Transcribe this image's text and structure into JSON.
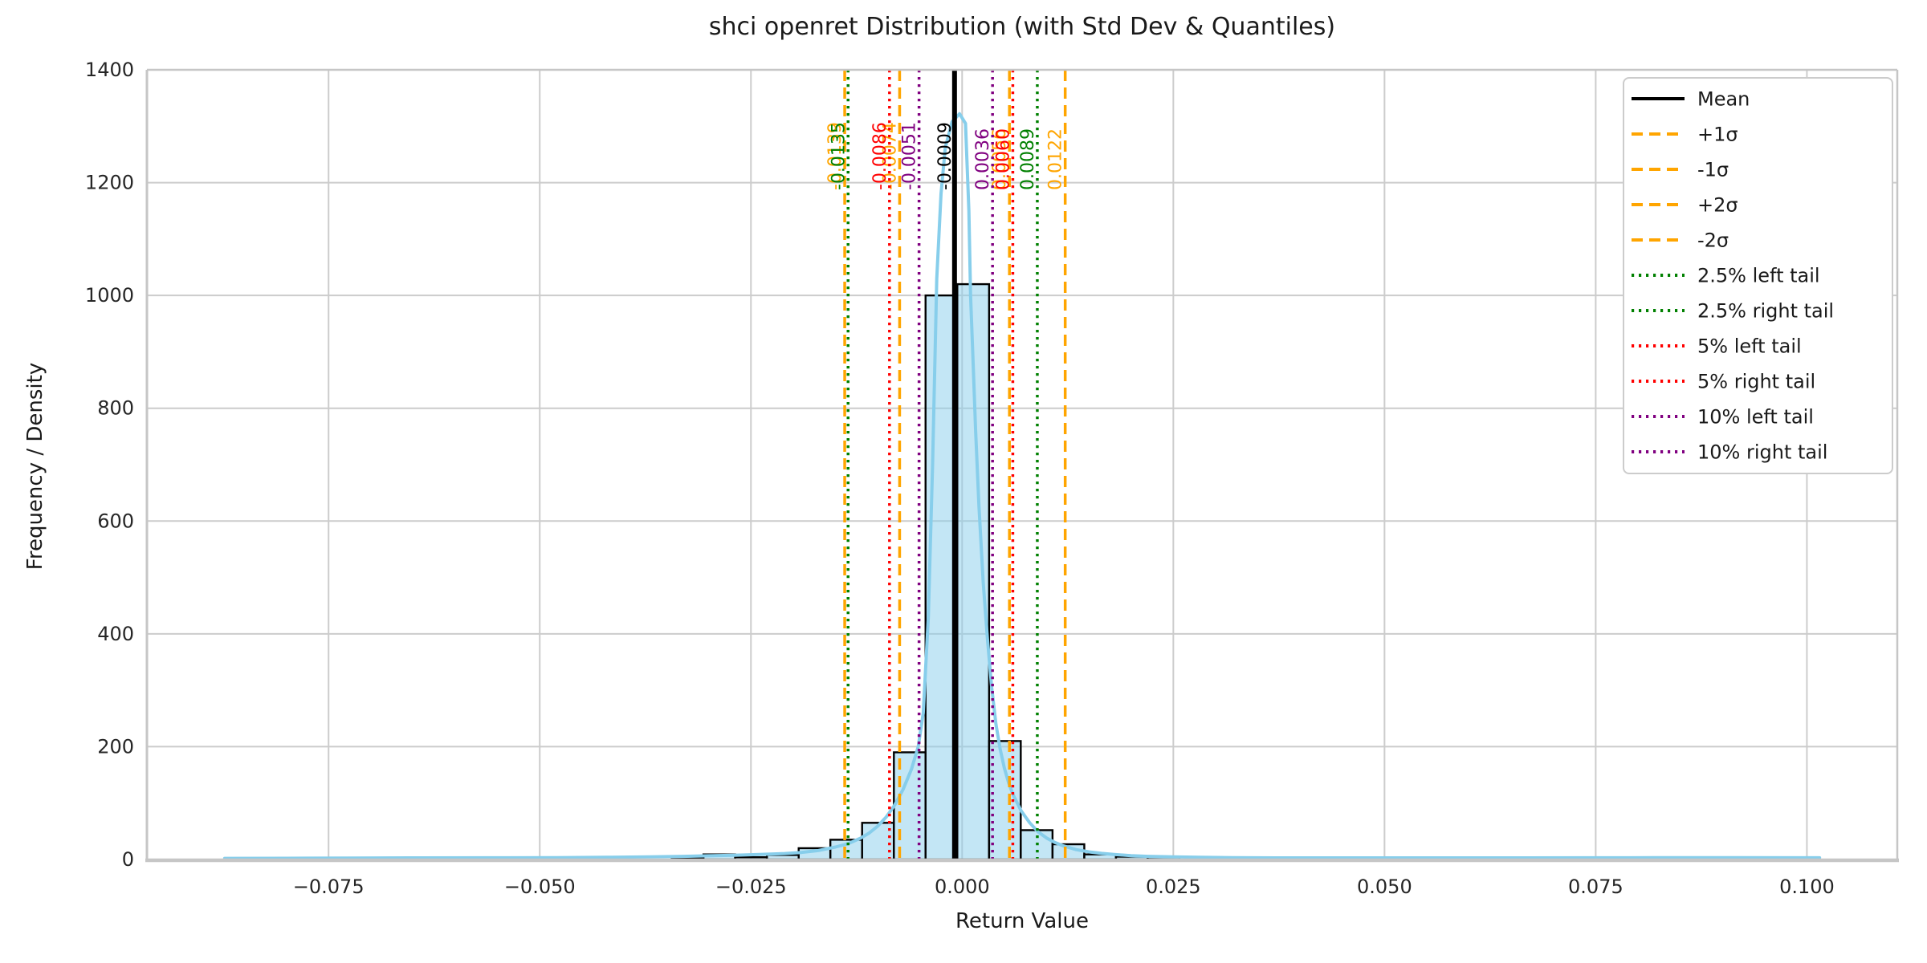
{
  "chart_data": {
    "type": "bar",
    "subtype": "histogram-with-kde-and-vlines",
    "title": "shci openret Distribution (with Std Dev & Quantiles)",
    "xlabel": "Return Value",
    "ylabel": "Frequency / Density",
    "xlim": [
      -0.0965,
      0.1107
    ],
    "ylim": [
      0,
      1400
    ],
    "grid": true,
    "background": "#ffffff",
    "grid_color": "#cccccc",
    "spine_color": "#c6c6c6",
    "tick_text_color": "#262626",
    "x_ticks": {
      "values": [
        -0.075,
        -0.05,
        -0.025,
        0.0,
        0.025,
        0.05,
        0.075,
        0.1
      ],
      "labels": [
        "−0.075",
        "−0.050",
        "−0.025",
        "0.000",
        "0.025",
        "0.050",
        "0.075",
        "0.100"
      ]
    },
    "y_ticks": {
      "values": [
        0,
        200,
        400,
        600,
        800,
        1000,
        1200,
        1400
      ],
      "labels": [
        "0",
        "200",
        "400",
        "600",
        "800",
        "1000",
        "1200",
        "1400"
      ]
    },
    "histogram": {
      "fill_color": "#87CEEB",
      "fill_opacity": 0.5,
      "edge_color": "#000000",
      "bin_edges": [
        -0.03438,
        -0.03062,
        -0.02687,
        -0.02311,
        -0.01935,
        -0.0156,
        -0.01184,
        -0.00808,
        -0.00433,
        -0.00057,
        0.00319,
        0.00694,
        0.0107,
        0.01446,
        0.01821,
        0.02197,
        0.02573
      ],
      "counts": [
        3,
        9,
        4,
        8,
        20,
        35,
        65,
        190,
        1000,
        1020,
        210,
        52,
        27,
        9,
        5,
        4
      ]
    },
    "kde": {
      "color": "#87CEEB",
      "width": 4,
      "points": [
        [
          -0.0873,
          2
        ],
        [
          -0.08,
          2.2
        ],
        [
          -0.072,
          2.5
        ],
        [
          -0.064,
          2.8
        ],
        [
          -0.056,
          3.0
        ],
        [
          -0.048,
          3.2
        ],
        [
          -0.042,
          3.8
        ],
        [
          -0.037,
          4.5
        ],
        [
          -0.033,
          5.5
        ],
        [
          -0.03,
          6.5
        ],
        [
          -0.027,
          7.6
        ],
        [
          -0.024,
          8.8
        ],
        [
          -0.021,
          10.5
        ],
        [
          -0.019,
          12.5
        ],
        [
          -0.017,
          16
        ],
        [
          -0.015,
          22
        ],
        [
          -0.0135,
          28
        ],
        [
          -0.012,
          38
        ],
        [
          -0.011,
          47
        ],
        [
          -0.01,
          59
        ],
        [
          -0.009,
          75
        ],
        [
          -0.008,
          96
        ],
        [
          -0.007,
          124
        ],
        [
          -0.006,
          160
        ],
        [
          -0.0052,
          200
        ],
        [
          -0.0046,
          260
        ],
        [
          -0.004,
          430
        ],
        [
          -0.0035,
          700
        ],
        [
          -0.003,
          1030
        ],
        [
          -0.0025,
          1180
        ],
        [
          -0.002,
          1262
        ],
        [
          -0.0012,
          1308
        ],
        [
          -0.0003,
          1322
        ],
        [
          0.0004,
          1305
        ],
        [
          0.0008,
          1150
        ],
        [
          0.001,
          1000
        ],
        [
          0.0013,
          880
        ],
        [
          0.0016,
          760
        ],
        [
          0.002,
          625
        ],
        [
          0.0025,
          490
        ],
        [
          0.003,
          390
        ],
        [
          0.0035,
          305
        ],
        [
          0.004,
          240
        ],
        [
          0.0045,
          196
        ],
        [
          0.005,
          162
        ],
        [
          0.0055,
          136
        ],
        [
          0.006,
          116
        ],
        [
          0.007,
          86
        ],
        [
          0.008,
          65
        ],
        [
          0.009,
          49
        ],
        [
          0.01,
          38
        ],
        [
          0.011,
          30
        ],
        [
          0.012,
          24
        ],
        [
          0.0135,
          17.5
        ],
        [
          0.015,
          13.5
        ],
        [
          0.0165,
          10.8
        ],
        [
          0.018,
          8.8
        ],
        [
          0.02,
          6.8
        ],
        [
          0.022,
          5.6
        ],
        [
          0.025,
          4.5
        ],
        [
          0.028,
          3.8
        ],
        [
          0.032,
          3.2
        ],
        [
          0.037,
          2.9
        ],
        [
          0.043,
          2.8
        ],
        [
          0.05,
          2.8
        ],
        [
          0.058,
          2.8
        ],
        [
          0.066,
          2.9
        ],
        [
          0.074,
          3.0
        ],
        [
          0.082,
          3.1
        ],
        [
          0.091,
          3.1
        ],
        [
          0.1015,
          3.0
        ]
      ]
    },
    "vlines": [
      {
        "name": "plus-1-sigma",
        "value": 0.0056,
        "label": "0.0056",
        "color": "#FFA500",
        "style": "dashed"
      },
      {
        "name": "minus-1-sigma",
        "value": -0.0074,
        "label": "-0.0074",
        "color": "#FFA500",
        "style": "dashed"
      },
      {
        "name": "plus-2-sigma",
        "value": 0.0122,
        "label": "0.0122",
        "color": "#FFA500",
        "style": "dashed"
      },
      {
        "name": "minus-2-sigma",
        "value": -0.0139,
        "label": "-0.0139",
        "color": "#FFA500",
        "style": "dashed"
      },
      {
        "name": "q2-5-left",
        "value": -0.0135,
        "label": "-0.0135",
        "color": "#008000",
        "style": "dotted"
      },
      {
        "name": "q2-5-right",
        "value": 0.0089,
        "label": "0.0089",
        "color": "#008000",
        "style": "dotted"
      },
      {
        "name": "q5-left",
        "value": -0.0086,
        "label": "-0.0086",
        "color": "#FF0000",
        "style": "dotted"
      },
      {
        "name": "q5-right",
        "value": 0.006,
        "label": "0.0060",
        "color": "#FF0000",
        "style": "dotted"
      },
      {
        "name": "q10-left",
        "value": -0.0051,
        "label": "-0.0051",
        "color": "#800080",
        "style": "dotted"
      },
      {
        "name": "q10-right",
        "value": 0.0036,
        "label": "0.0036",
        "color": "#800080",
        "style": "dotted"
      },
      {
        "name": "mean",
        "value": -0.0009,
        "label": "-0.0009",
        "color": "#000000",
        "style": "solid"
      }
    ],
    "stats": {
      "mean": -0.0009,
      "plus_1_sigma": 0.0056,
      "minus_1_sigma": -0.0074,
      "plus_2_sigma": 0.0122,
      "minus_2_sigma": -0.0139,
      "q2_5_left": -0.0135,
      "q2_5_right": 0.0089,
      "q5_left": -0.0086,
      "q5_right": 0.006,
      "q10_left": -0.0051,
      "q10_right": 0.0036
    },
    "legend": {
      "position": "upper right",
      "border_color": "#cccccc",
      "text_color": "#1a1a1a",
      "entries": [
        {
          "label": "Mean",
          "color": "#000000",
          "style": "solid"
        },
        {
          "label": "+1σ",
          "color": "#FFA500",
          "style": "dashed"
        },
        {
          "label": "-1σ",
          "color": "#FFA500",
          "style": "dashed"
        },
        {
          "label": "+2σ",
          "color": "#FFA500",
          "style": "dashed"
        },
        {
          "label": "-2σ",
          "color": "#FFA500",
          "style": "dashed"
        },
        {
          "label": "2.5% left tail",
          "color": "#008000",
          "style": "dotted"
        },
        {
          "label": "2.5% right tail",
          "color": "#008000",
          "style": "dotted"
        },
        {
          "label": "5% left tail",
          "color": "#FF0000",
          "style": "dotted"
        },
        {
          "label": "5% right tail",
          "color": "#FF0000",
          "style": "dotted"
        },
        {
          "label": "10% left tail",
          "color": "#800080",
          "style": "dotted"
        },
        {
          "label": "10% right tail",
          "color": "#800080",
          "style": "dotted"
        }
      ]
    }
  }
}
